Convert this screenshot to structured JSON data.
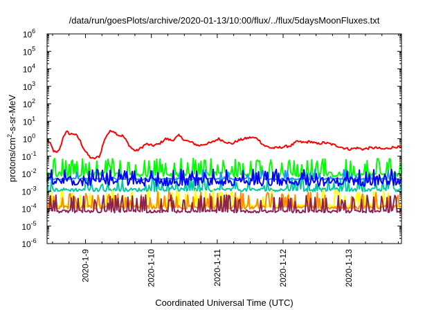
{
  "chart_data": {
    "type": "line",
    "title": "/data/run/goesPlots/archive/2020-01-13/10:00/flux/../flux/5daysMoonFluxes.txt",
    "xlabel": "Coordinated Universal Time (UTC)",
    "ylabel": "protons/cm2-s-sr-MeV",
    "ylabel_parts": [
      "protons/cm",
      "2",
      "-s-sr-MeV"
    ],
    "y_scale": "log",
    "ylim": [
      1e-06,
      1000000.0
    ],
    "y_ticks": [
      {
        "value": 1e-06,
        "base": "10",
        "exp": "-6"
      },
      {
        "value": 1e-05,
        "base": "10",
        "exp": "-5"
      },
      {
        "value": 0.0001,
        "base": "10",
        "exp": "-4"
      },
      {
        "value": 0.001,
        "base": "10",
        "exp": "-3"
      },
      {
        "value": 0.01,
        "base": "10",
        "exp": "-2"
      },
      {
        "value": 0.1,
        "base": "10",
        "exp": "-1"
      },
      {
        "value": 1,
        "base": "10",
        "exp": "0"
      },
      {
        "value": 10,
        "base": "10",
        "exp": "1"
      },
      {
        "value": 100,
        "base": "10",
        "exp": "2"
      },
      {
        "value": 1000.0,
        "base": "10",
        "exp": "3"
      },
      {
        "value": 10000.0,
        "base": "10",
        "exp": "4"
      },
      {
        "value": 100000.0,
        "base": "10",
        "exp": "5"
      },
      {
        "value": 1000000.0,
        "base": "10",
        "exp": "6"
      }
    ],
    "xlim": [
      "2020-01-08T10:00",
      "2020-01-13T10:00"
    ],
    "x_ticks": [
      "2020-1-9",
      "2020-1-10",
      "2020-1-11",
      "2020-1-12",
      "2020-1-13"
    ],
    "grid": false,
    "legend": "none",
    "series": [
      {
        "color": "#ff0000",
        "anchors": [
          [
            0,
            0.9
          ],
          [
            0.05,
            0.5
          ],
          [
            0.1,
            0.2
          ],
          [
            0.15,
            0.15
          ],
          [
            0.2,
            0.3
          ],
          [
            0.25,
            1.5
          ],
          [
            0.3,
            2.5
          ],
          [
            0.35,
            1.8
          ],
          [
            0.4,
            2.0
          ],
          [
            0.45,
            1.5
          ],
          [
            0.5,
            0.8
          ],
          [
            0.55,
            0.3
          ],
          [
            0.6,
            0.15
          ],
          [
            0.65,
            0.09
          ],
          [
            0.7,
            0.07
          ],
          [
            0.8,
            0.1
          ],
          [
            0.85,
            0.5
          ],
          [
            0.9,
            1.5
          ],
          [
            0.95,
            2.5
          ],
          [
            1,
            3.0
          ],
          [
            1.05,
            2.0
          ],
          [
            1.1,
            1.5
          ],
          [
            1.15,
            1.5
          ],
          [
            1.2,
            0.8
          ],
          [
            1.25,
            0.4
          ],
          [
            1.3,
            0.25
          ],
          [
            1.35,
            0.2
          ],
          [
            1.4,
            0.25
          ],
          [
            1.5,
            0.5
          ],
          [
            1.6,
            0.4
          ],
          [
            1.7,
            0.5
          ],
          [
            1.8,
            1.0
          ],
          [
            1.9,
            0.8
          ],
          [
            2.0,
            1.5
          ],
          [
            2.1,
            0.8
          ],
          [
            2.2,
            0.6
          ],
          [
            2.3,
            0.4
          ],
          [
            2.4,
            0.5
          ],
          [
            2.5,
            0.6
          ],
          [
            2.6,
            1.0
          ],
          [
            2.7,
            0.7
          ],
          [
            2.8,
            0.5
          ],
          [
            2.9,
            0.8
          ],
          [
            3.0,
            1.0
          ],
          [
            3.1,
            1.2
          ],
          [
            3.2,
            1.0
          ],
          [
            3.25,
            0.6
          ],
          [
            3.3,
            0.4
          ],
          [
            3.4,
            0.3
          ],
          [
            3.5,
            0.3
          ],
          [
            3.6,
            0.35
          ],
          [
            3.7,
            0.4
          ],
          [
            3.8,
            0.7
          ],
          [
            3.9,
            0.6
          ],
          [
            4.0,
            0.7
          ],
          [
            4.1,
            0.5
          ],
          [
            4.2,
            0.6
          ],
          [
            4.3,
            0.5
          ],
          [
            4.4,
            0.4
          ],
          [
            4.5,
            0.3
          ],
          [
            4.6,
            0.25
          ],
          [
            4.7,
            0.3
          ],
          [
            4.8,
            0.25
          ],
          [
            4.9,
            0.3
          ],
          [
            5.0,
            0.3
          ],
          [
            5.1,
            0.25
          ],
          [
            5.2,
            0.3
          ],
          [
            5.3,
            0.35
          ],
          [
            5.38,
            0.3
          ]
        ],
        "noise": 0.07
      },
      {
        "color": "#00ff00",
        "base": 0.009,
        "spike": 0.05,
        "spikes_per_day": 14,
        "noise": 0.15
      },
      {
        "color": "#00c8a0",
        "base": 0.0012,
        "spike": 0.004,
        "spikes_per_day": 10,
        "noise": 0.1
      },
      {
        "color": "#1e90ff",
        "base": 0.005,
        "spike": 0.012,
        "spikes_per_day": 6,
        "noise": 0.05
      },
      {
        "color": "#0000ff",
        "base": 0.0035,
        "spike": 0.012,
        "spikes_per_day": 12,
        "noise": 0.25
      },
      {
        "color": "#ffff00",
        "base": 0.00015,
        "spike": 0.0008,
        "spikes_per_day": 12,
        "noise": 0.1
      },
      {
        "color": "#ff8c00",
        "base": 0.00012,
        "spike": 0.0006,
        "spikes_per_day": 12,
        "noise": 0.1
      },
      {
        "color": "#8b2252",
        "base": 7e-05,
        "spike": 0.0004,
        "spikes_per_day": 12,
        "noise": 0.08
      }
    ]
  }
}
